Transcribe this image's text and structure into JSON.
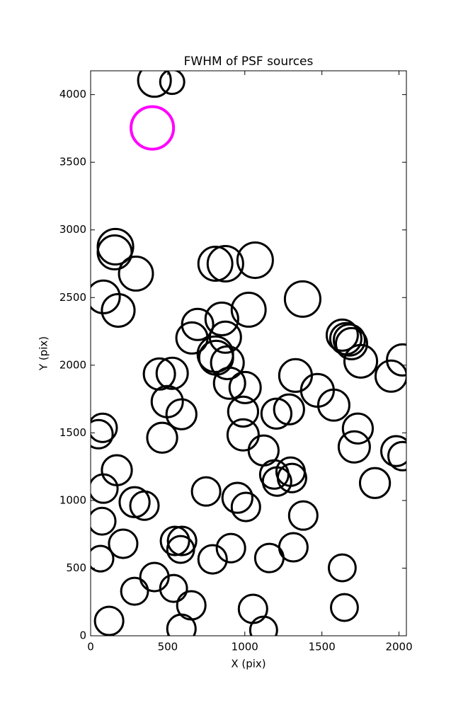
{
  "chart_data": {
    "type": "scatter",
    "title": "FWHM of PSF sources",
    "x_label": "X (pix)",
    "y_label": "Y (pix)",
    "xlim": [
      0,
      2048
    ],
    "ylim": [
      0,
      4176
    ],
    "xticks": [
      0,
      500,
      1000,
      1500,
      2000
    ],
    "yticks": [
      0,
      500,
      1000,
      1500,
      2000,
      2500,
      3000,
      3500,
      4000
    ],
    "series": [
      {
        "color": "#000000",
        "x": [
          414,
          529,
          161,
          156,
          294,
          83,
          179,
          809,
          874,
          1067,
          1375,
          1025,
          694,
          851,
          657,
          874,
          809,
          814,
          887,
          446,
          529,
          901,
          1002,
          497,
          589,
          989,
          989,
          464,
          1329,
          1471,
          1205,
          1287,
          1577,
          1632,
          1655,
          1678,
          1692,
          1752,
          1949,
          2023,
          1733,
          1710,
          1982,
          2023,
          78,
          51,
          170,
          83,
          74,
          64,
          211,
          285,
          349,
          285,
          414,
          538,
          120,
          589,
          653,
          547,
          593,
          584,
          749,
          791,
          910,
          952,
          1007,
          1122,
          1191,
          1209,
          1297,
          1306,
          1379,
          1159,
          1315,
          1053,
          1122,
          1632,
          1646,
          1844
        ],
        "y": [
          4105,
          4094,
          2876,
          2834,
          2677,
          2505,
          2405,
          2750,
          2750,
          2776,
          2489,
          2410,
          2301,
          2342,
          2201,
          2207,
          2081,
          2055,
          2018,
          1935,
          1940,
          1867,
          1835,
          1731,
          1637,
          1657,
          1485,
          1464,
          1924,
          1814,
          1642,
          1673,
          1705,
          2222,
          2196,
          2186,
          2159,
          2029,
          1919,
          2039,
          1532,
          1396,
          1365,
          1328,
          1537,
          1490,
          1224,
          1088,
          847,
          570,
          680,
          988,
          962,
          329,
          434,
          350,
          110,
          52,
          225,
          701,
          701,
          638,
          1067,
          565,
          648,
          1020,
          952,
          1370,
          1192,
          1140,
          1213,
          1166,
          889,
          575,
          654,
          199,
          42,
          502,
          209,
          1129
        ],
        "sizes": [
          106,
          78,
          115,
          110,
          110,
          106,
          106,
          110,
          115,
          115,
          115,
          110,
          101,
          106,
          101,
          101,
          115,
          110,
          106,
          101,
          101,
          101,
          101,
          101,
          97,
          97,
          101,
          97,
          106,
          106,
          97,
          97,
          101,
          101,
          101,
          101,
          101,
          106,
          101,
          101,
          97,
          101,
          97,
          92,
          92,
          92,
          97,
          92,
          87,
          83,
          92,
          97,
          92,
          87,
          92,
          87,
          92,
          92,
          92,
          92,
          92,
          87,
          92,
          92,
          92,
          97,
          92,
          97,
          92,
          92,
          92,
          92,
          92,
          92,
          92,
          92,
          87,
          87,
          87,
          97
        ]
      },
      {
        "color": "#ff00ff",
        "x": [
          400
        ],
        "y": [
          3754
        ],
        "sizes": [
          138
        ]
      }
    ]
  }
}
